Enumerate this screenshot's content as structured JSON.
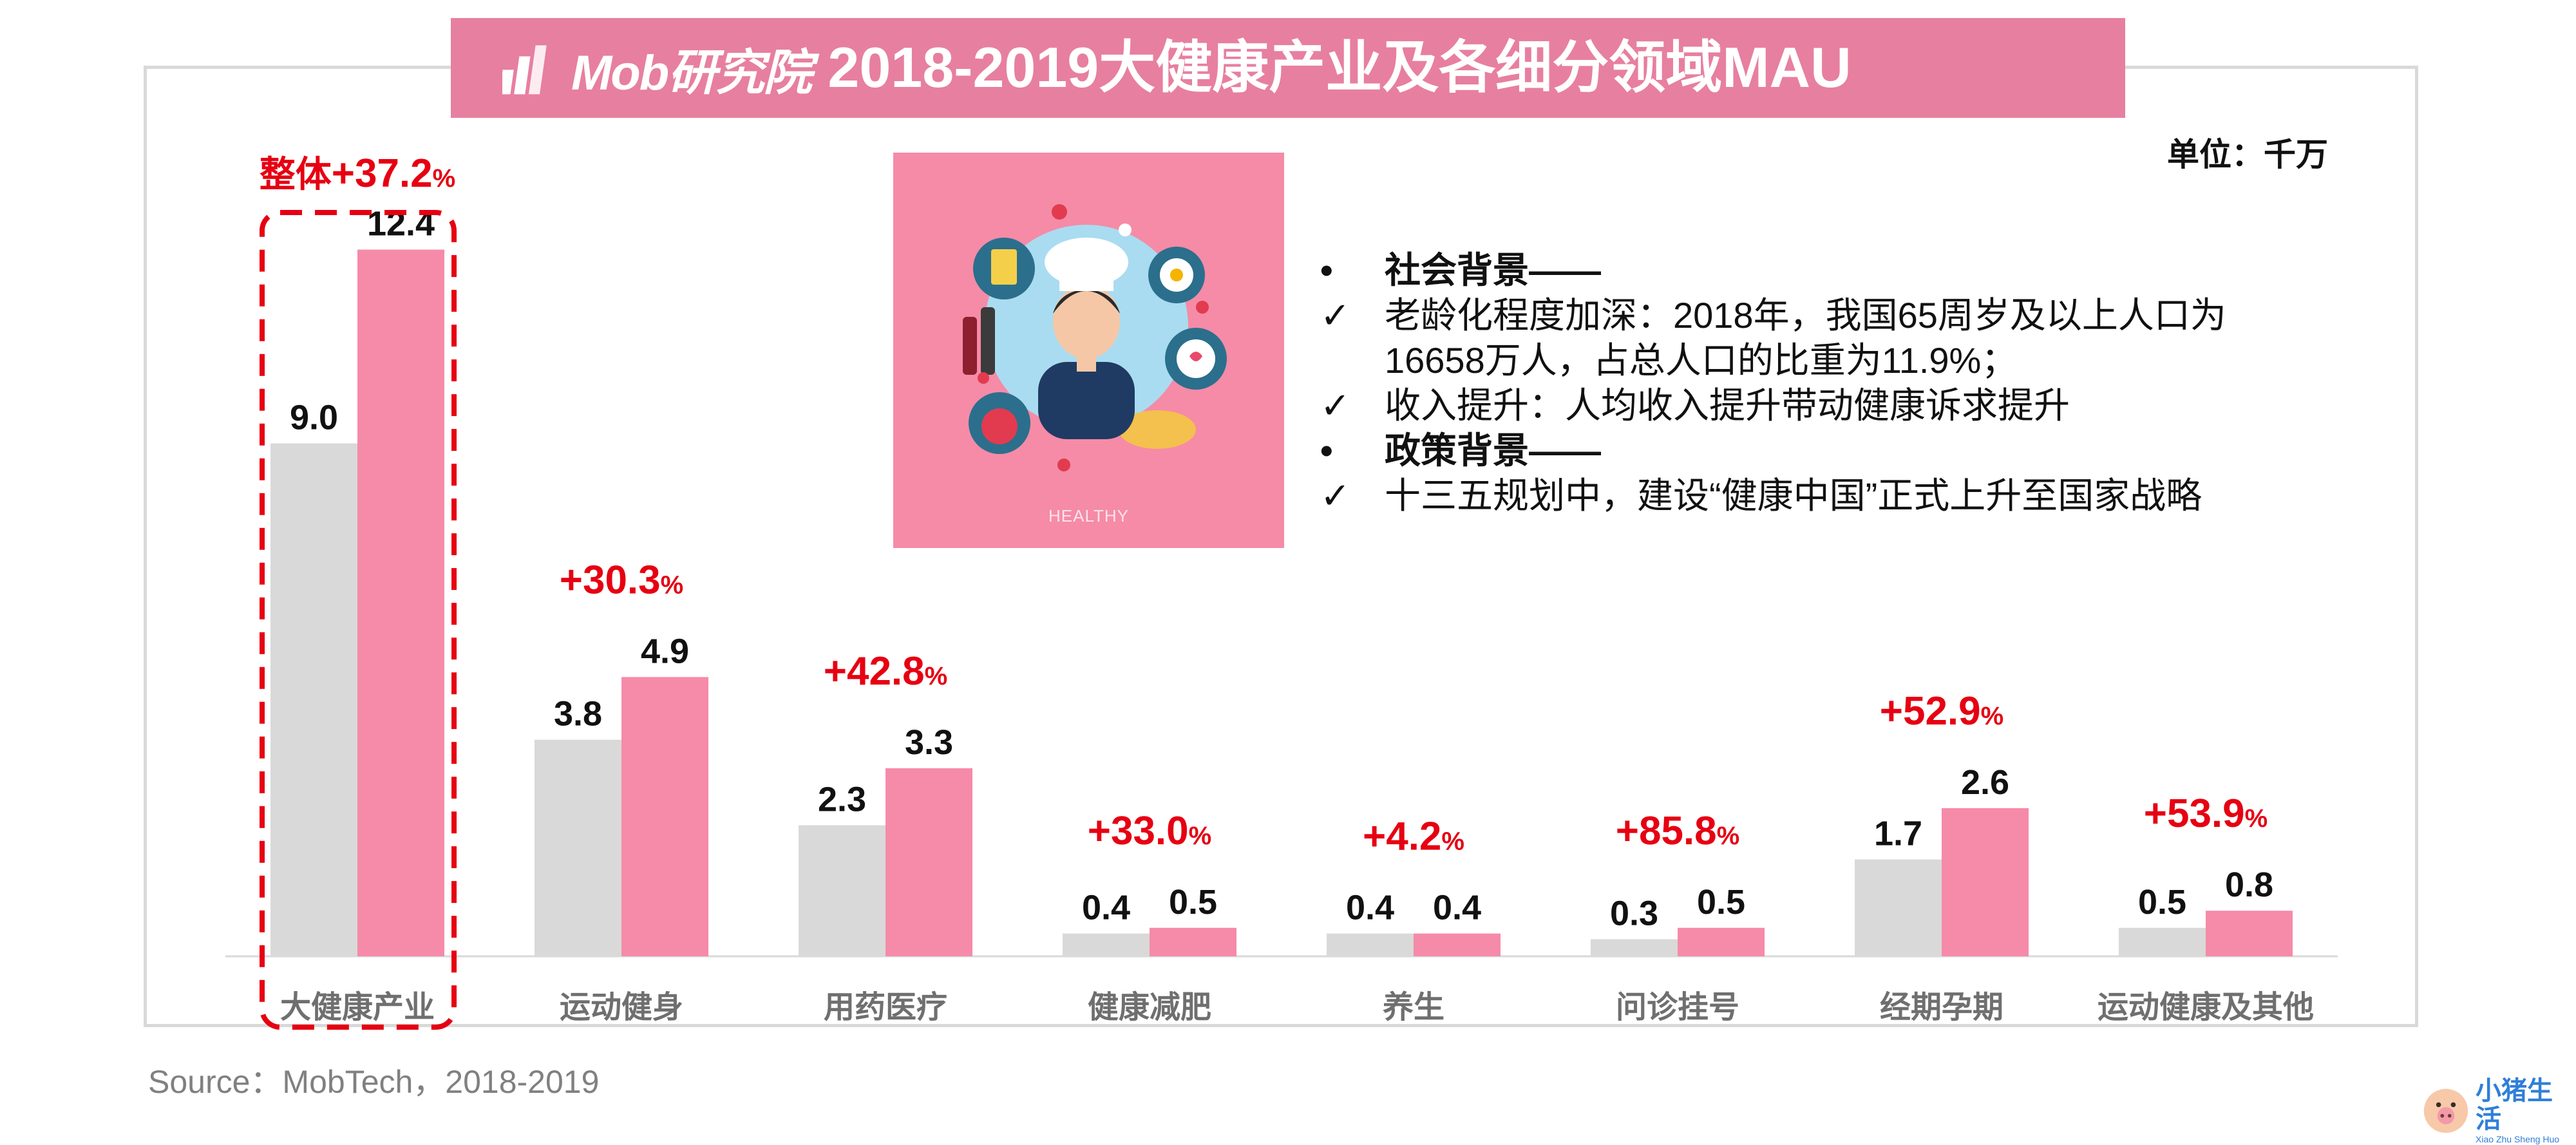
{
  "header": {
    "logo_text": "Mob研究院",
    "title": "2018-2019大健康产业及各细分领域MAU"
  },
  "unit_label": "单位：千万",
  "illustration": {
    "caption": "HEALTHY"
  },
  "notes": [
    {
      "marker": "•",
      "text": "社会背景——",
      "style": "head"
    },
    {
      "marker": "✓",
      "text": "老龄化程度加深：2018年，我国65周岁及以上人口为",
      "style": "body"
    },
    {
      "marker": "",
      "text": "16658万人，占总人口的比重为11.9%；",
      "style": "cont"
    },
    {
      "marker": "✓",
      "text": "收入提升：人均收入提升带动健康诉求提升",
      "style": "body"
    },
    {
      "marker": "•",
      "text": "政策背景——",
      "style": "head"
    },
    {
      "marker": "✓",
      "text": "十三五规划中，建设“健康中国”正式上升至国家战略",
      "style": "body"
    }
  ],
  "source": "Source：MobTech，2018-2019",
  "watermark": {
    "cn": "小猪生活",
    "en": "Xiao Zhu Sheng Huo"
  },
  "colors": {
    "banner": "#e77fa0",
    "bar_2018": "#d9d9d9",
    "bar_2019": "#f68aa9",
    "growth": "#e60012",
    "highlight_border": "#e60012"
  },
  "chart_data": {
    "type": "bar",
    "categories": [
      "大健康产业",
      "运动健身",
      "用药医疗",
      "健康减肥",
      "养生",
      "问诊挂号",
      "经期孕期",
      "运动健康及其他"
    ],
    "series": [
      {
        "values": [
          9.0,
          3.8,
          2.3,
          0.4,
          0.4,
          0.3,
          1.7,
          0.5
        ],
        "labels": [
          "9.0",
          "3.8",
          "2.3",
          "0.4",
          "0.4",
          "0.3",
          "1.7",
          "0.5"
        ]
      },
      {
        "values": [
          12.4,
          4.9,
          3.3,
          0.5,
          0.4,
          0.5,
          2.6,
          0.8
        ],
        "labels": [
          "12.4",
          "4.9",
          "3.3",
          "0.5",
          "0.4",
          "0.5",
          "2.6",
          "0.8"
        ]
      }
    ],
    "growth": [
      {
        "prefix": "整体",
        "value": "+37.2",
        "unit": "%"
      },
      {
        "prefix": "",
        "value": "+30.3",
        "unit": "%"
      },
      {
        "prefix": "",
        "value": "+42.8",
        "unit": "%"
      },
      {
        "prefix": "",
        "value": "+33.0",
        "unit": "%"
      },
      {
        "prefix": "",
        "value": "+4.2",
        "unit": "%"
      },
      {
        "prefix": "",
        "value": "+85.8",
        "unit": "%"
      },
      {
        "prefix": "",
        "value": "+52.9",
        "unit": "%"
      },
      {
        "prefix": "",
        "value": "+53.9",
        "unit": "%"
      }
    ],
    "highlighted_category": "大健康产业",
    "legend": "none",
    "grid": false
  }
}
